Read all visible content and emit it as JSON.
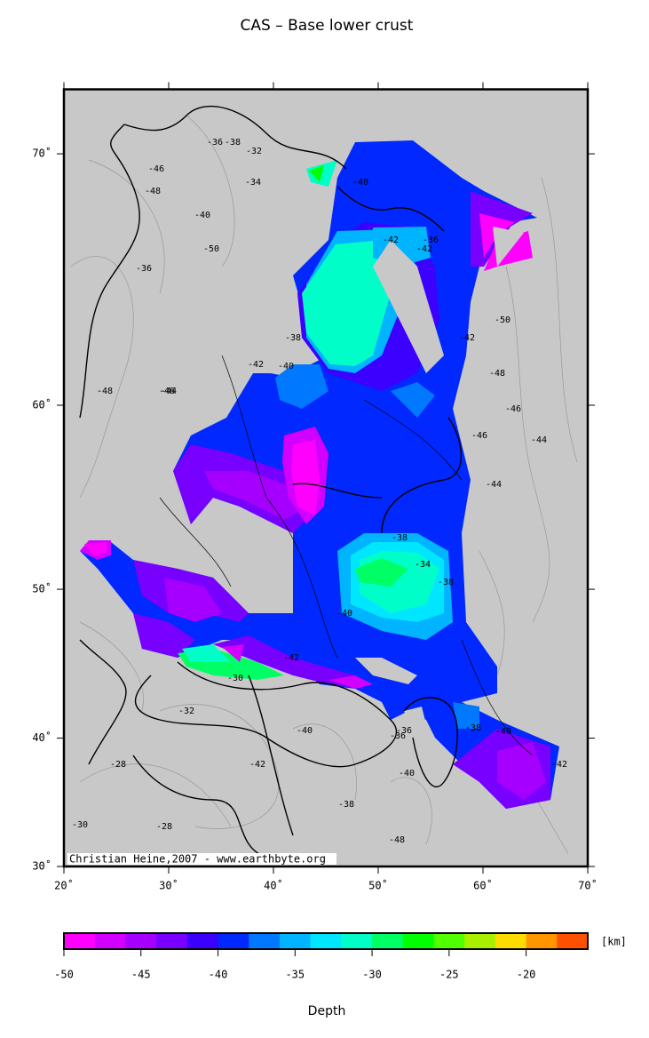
{
  "title": "CAS – Base lower crust",
  "map": {
    "xlim": [
      20,
      70
    ],
    "ylim": [
      30,
      72
    ],
    "xticks": [
      {
        "value": 20,
        "label": "20˚"
      },
      {
        "value": 30,
        "label": "30˚"
      },
      {
        "value": 40,
        "label": "40˚"
      },
      {
        "value": 50,
        "label": "50˚"
      },
      {
        "value": 60,
        "label": "60˚"
      },
      {
        "value": 70,
        "label": "70˚"
      }
    ],
    "yticks": [
      {
        "value": 30,
        "label": "30˚"
      },
      {
        "value": 40,
        "label": "40˚"
      },
      {
        "value": 50,
        "label": "50˚"
      },
      {
        "value": 60,
        "label": "60˚"
      },
      {
        "value": 70,
        "label": "70˚"
      }
    ],
    "projection": "mercator",
    "background": "#c8c8c8",
    "contour_labels": [
      -36,
      -38,
      -32,
      -34,
      -46,
      -48,
      -40,
      -50,
      -36,
      -38,
      -40,
      -42,
      -48,
      -46,
      -44,
      -42,
      -40,
      -42,
      -46,
      -44,
      -46,
      -50,
      -48,
      -42,
      -44,
      -38,
      -36,
      -34,
      -38,
      -40,
      -42,
      -36,
      -30,
      -32,
      -36,
      -38,
      -40,
      -28,
      -30,
      -28,
      -42,
      -40,
      -38,
      -48,
      -40,
      -42
    ],
    "credit": "Christian Heine,2007 - www.earthbyte.org"
  },
  "colorbar": {
    "label": "Depth",
    "unit": "[km]",
    "range": [
      -50,
      -16
    ],
    "ticks": [
      -50,
      -45,
      -40,
      -35,
      -30,
      -25,
      -20
    ],
    "colors": [
      "#ff00ff",
      "#d200ff",
      "#a500ff",
      "#7800ff",
      "#3c00ff",
      "#0028ff",
      "#0078ff",
      "#00b4ff",
      "#00e6ff",
      "#00ffc8",
      "#00ff64",
      "#00ff00",
      "#50ff00",
      "#a8f000",
      "#ffdc00",
      "#ff9600",
      "#ff5000"
    ]
  }
}
